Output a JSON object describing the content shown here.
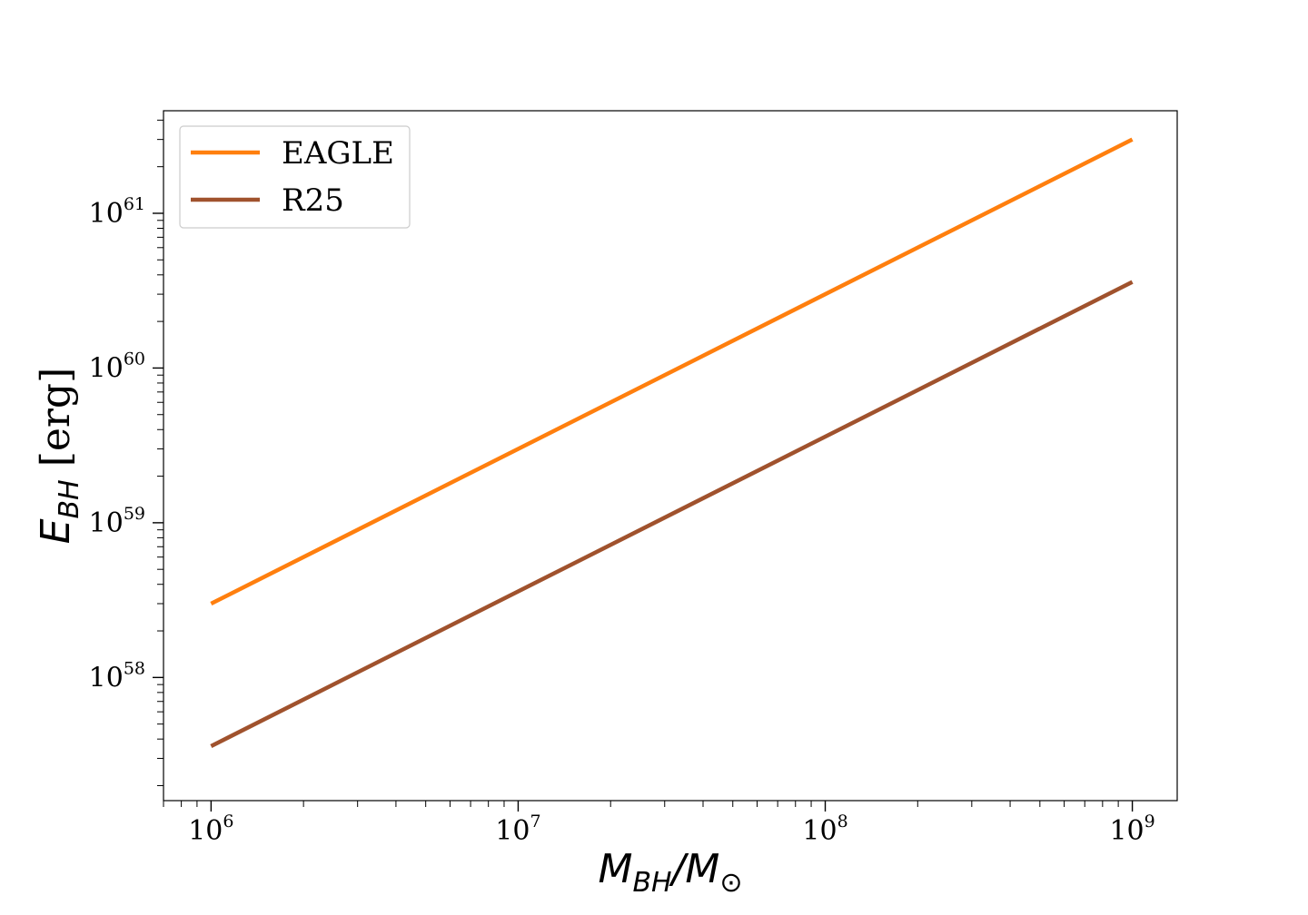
{
  "chart_data": {
    "type": "line",
    "xscale": "log",
    "yscale": "log",
    "xlim": [
      700000,
      1400000000
    ],
    "ylim": [
      1.6e+57,
      4.6e+61
    ],
    "x_ticks": [
      1000000.0,
      10000000.0,
      100000000.0,
      1000000000.0
    ],
    "x_tick_labels": [
      {
        "base": "10",
        "exp": "6"
      },
      {
        "base": "10",
        "exp": "7"
      },
      {
        "base": "10",
        "exp": "8"
      },
      {
        "base": "10",
        "exp": "9"
      }
    ],
    "y_ticks": [
      1e+58,
      1e+59,
      1e+60,
      1e+61
    ],
    "y_tick_labels": [
      {
        "base": "10",
        "exp": "58"
      },
      {
        "base": "10",
        "exp": "59"
      },
      {
        "base": "10",
        "exp": "60"
      },
      {
        "base": "10",
        "exp": "61"
      }
    ],
    "xlabel": {
      "main": "M",
      "sub1": "BH",
      "sep": "/M",
      "sub2": "⊙"
    },
    "ylabel": {
      "main": "E",
      "sub": "BH",
      "unit": " [erg]"
    },
    "legend_position": "top-left",
    "grid": false,
    "series": [
      {
        "name": "EAGLE",
        "color": "#ff7f0e",
        "x": [
          1000000.0,
          1000000000.0
        ],
        "y": [
          3e+58,
          3e+61
        ]
      },
      {
        "name": "R25",
        "color": "#a0522d",
        "x": [
          1000000.0,
          1000000000.0
        ],
        "y": [
          3.6e+57,
          3.6e+60
        ]
      }
    ]
  }
}
